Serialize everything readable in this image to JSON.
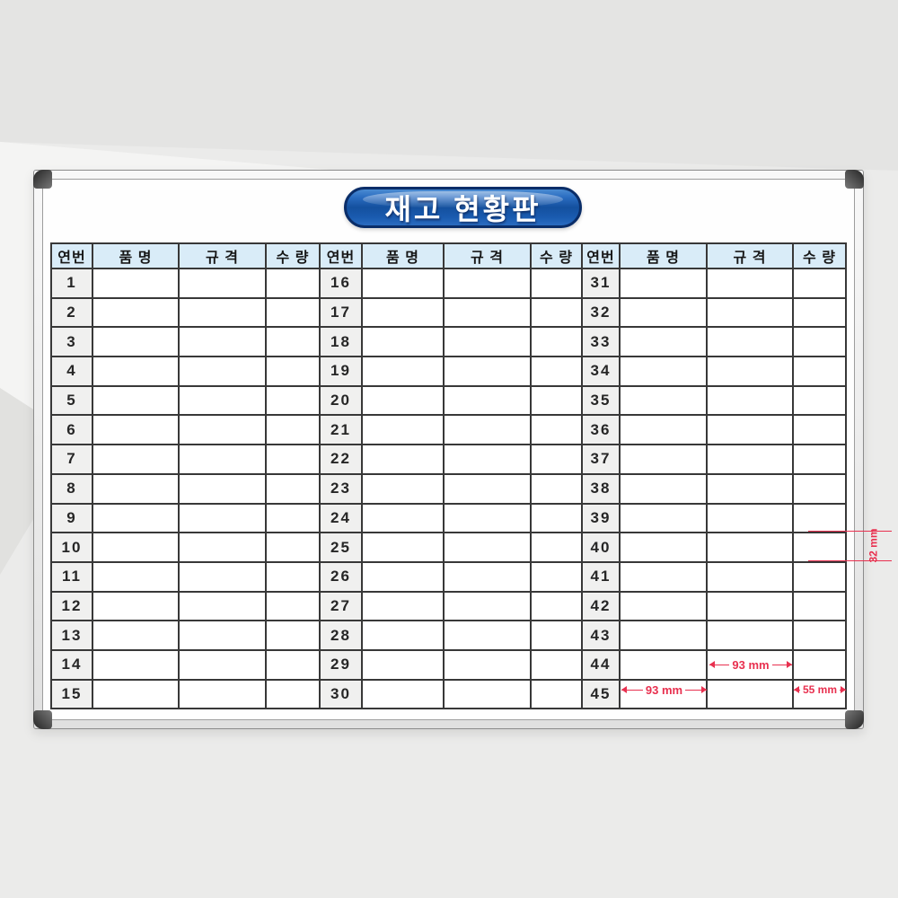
{
  "board": {
    "title": "재고 현황판"
  },
  "table": {
    "headers": [
      "연번",
      "품 명",
      "규 격",
      "수 량"
    ],
    "rows_per_group": 15,
    "groups": [
      {
        "numbers": [
          1,
          2,
          3,
          4,
          5,
          6,
          7,
          8,
          9,
          10,
          11,
          12,
          13,
          14,
          15
        ]
      },
      {
        "numbers": [
          16,
          17,
          18,
          19,
          20,
          21,
          22,
          23,
          24,
          25,
          26,
          27,
          28,
          29,
          30
        ]
      },
      {
        "numbers": [
          31,
          32,
          33,
          34,
          35,
          36,
          37,
          38,
          39,
          40,
          41,
          42,
          43,
          44,
          45
        ]
      }
    ]
  },
  "annotations": {
    "row_height": "32 mm",
    "name_col_width": "93 mm",
    "spec_col_width": "93 mm",
    "qty_col_width": "55 mm",
    "color": "#e8304f"
  },
  "colors": {
    "header_bg": "#d9ecf8",
    "serial_bg": "#f0f0ef",
    "grid_line": "#383838",
    "title_border": "#0a2d68",
    "title_blue": "#14509e",
    "background": "#ebebea"
  }
}
